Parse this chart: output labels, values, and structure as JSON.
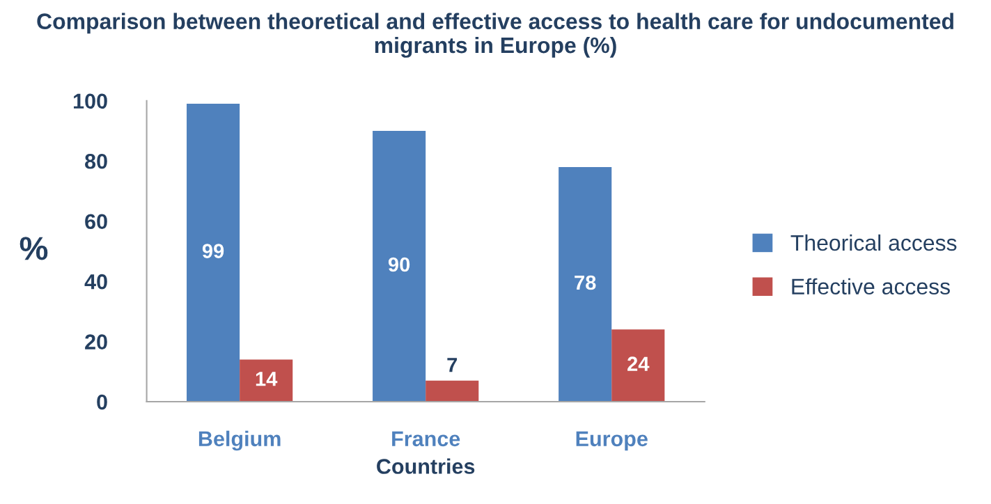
{
  "chart_data": {
    "type": "bar",
    "title": "Comparison between theoretical and effective access to health care for undocumented migrants in Europe (%)",
    "xlabel": "Countries",
    "ylabel": "%",
    "categories": [
      "Belgium",
      "France",
      "Europe"
    ],
    "series": [
      {
        "name": "Theorical access",
        "color": "#4f81bd",
        "values": [
          99,
          90,
          78
        ]
      },
      {
        "name": "Effective access",
        "color": "#c0504d",
        "values": [
          14,
          7,
          24
        ]
      }
    ],
    "ylim": [
      0,
      100
    ],
    "yticks": [
      0,
      20,
      40,
      60,
      80,
      100
    ],
    "grid": false,
    "legend": "right",
    "data_labels": true
  }
}
